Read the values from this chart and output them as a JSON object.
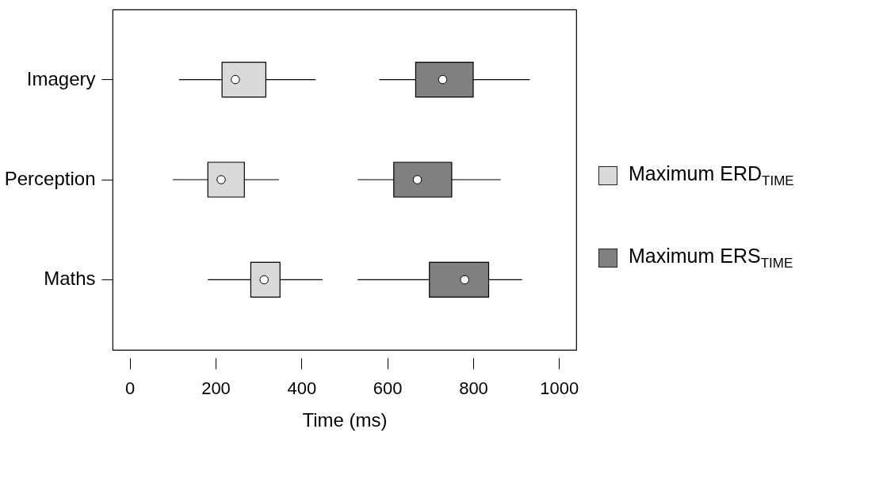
{
  "chart_data": {
    "type": "box",
    "orientation": "horizontal",
    "xlabel": "Time (ms)",
    "categories": [
      "Imagery",
      "Perception",
      "Maths"
    ],
    "xlim": [
      -40,
      1040
    ],
    "xticks": [
      0,
      200,
      400,
      600,
      800,
      1000
    ],
    "grid": false,
    "legend": "right",
    "series": [
      {
        "name": "Maximum ERD$_{TIME}$",
        "color": "#d9d9d9",
        "boxes": [
          {
            "low": 115,
            "q1": 215,
            "median": 246,
            "q3": 317,
            "high": 433
          },
          {
            "low": 100,
            "q1": 182,
            "median": 213,
            "q3": 267,
            "high": 348
          },
          {
            "low": 182,
            "q1": 282,
            "median": 313,
            "q3": 350,
            "high": 449
          }
        ]
      },
      {
        "name": "Maximum ERS$_{TIME}$",
        "color": "#808080",
        "boxes": [
          {
            "low": 581,
            "q1": 666,
            "median": 729,
            "q3": 800,
            "high": 932
          },
          {
            "low": 531,
            "q1": 615,
            "median": 670,
            "q3": 750,
            "high": 864
          },
          {
            "low": 531,
            "q1": 698,
            "median": 780,
            "q3": 836,
            "high": 914
          }
        ]
      }
    ]
  }
}
